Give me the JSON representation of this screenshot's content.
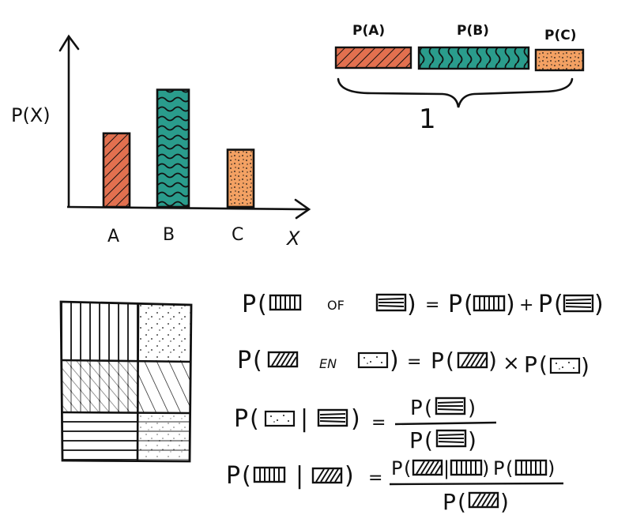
{
  "chart": {
    "ylabel": "P(X)",
    "xlabel": "X",
    "categories": [
      "A",
      "B",
      "C"
    ]
  },
  "chart_data": {
    "type": "bar",
    "categories": [
      "A",
      "B",
      "C"
    ],
    "values": [
      0.27,
      0.43,
      0.21
    ],
    "xlabel": "X",
    "ylabel": "P(X)",
    "ylim": [
      0,
      0.62
    ],
    "grid": false
  },
  "stacked_bar": {
    "labels": [
      "P(A)",
      "P(B)",
      "P(C)"
    ],
    "total_label": "1"
  },
  "colors": {
    "A": "#e2704f",
    "B": "#2a9c8c",
    "C": "#f3a163",
    "ink": "#111111"
  },
  "equations": {
    "or_text": "OF",
    "and_text": "EN",
    "P": "P",
    "equals": "=",
    "plus": "+",
    "times": "×",
    "bar": "|"
  }
}
